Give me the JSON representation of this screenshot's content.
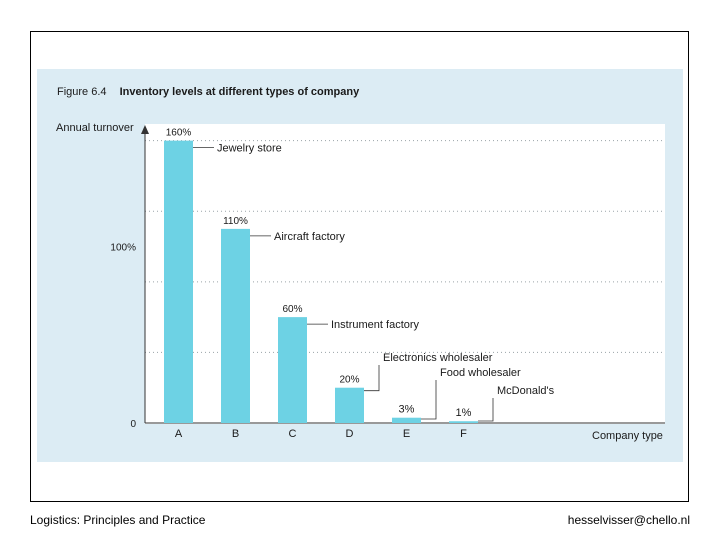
{
  "slide": {
    "footer_left": "Logistics: Principles and Practice",
    "footer_right": "hesselvisser@chello.nl"
  },
  "figure": {
    "number": "Figure 6.4",
    "title": "Inventory levels at different types of company"
  },
  "chart_data": {
    "type": "bar",
    "title": "Inventory levels at different types of company",
    "ylabel": "Annual turnover",
    "xlabel": "Company type",
    "categories": [
      "A",
      "B",
      "C",
      "D",
      "E",
      "F"
    ],
    "values": [
      160,
      110,
      60,
      20,
      3,
      1
    ],
    "value_labels": [
      "160%",
      "110%",
      "60%",
      "20%",
      "3%",
      "1%"
    ],
    "companies": [
      "Jewelry store",
      "Aircraft factory",
      "Instrument factory",
      "Electronics wholesaler",
      "Food wholesaler",
      "McDonald's"
    ],
    "yticks": [
      {
        "value": 0,
        "label": "0"
      },
      {
        "value": 100,
        "label": "100%"
      }
    ],
    "gridlines": [
      40,
      80,
      120,
      160
    ],
    "ylim": [
      0,
      170
    ],
    "colors": {
      "bar": "#6dd2e4",
      "text": "#1a1a1a",
      "grid": "#9aa3a8",
      "axis": "#333333"
    }
  }
}
